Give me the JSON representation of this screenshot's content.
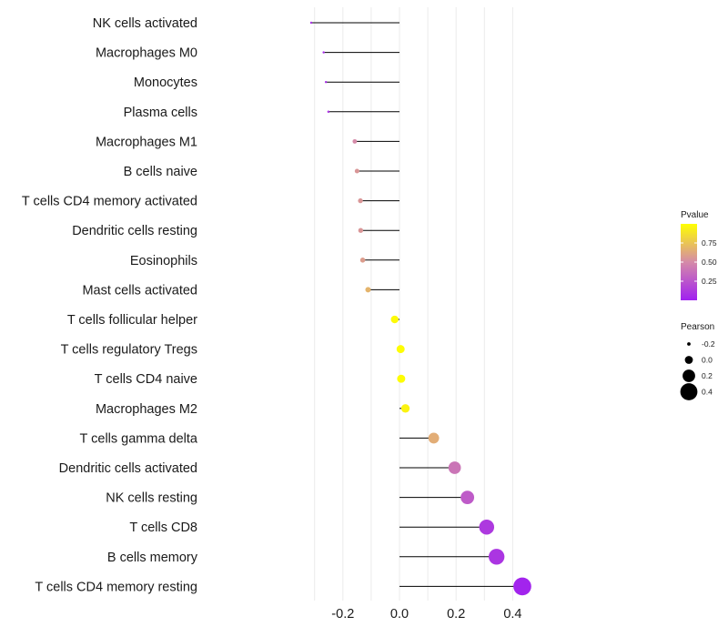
{
  "chart_data": {
    "type": "lollipop",
    "title": "",
    "xlabel": "",
    "ylabel": "",
    "xlim": [
      -0.3,
      0.45
    ],
    "x_ticks": [
      -0.2,
      0.0,
      0.2,
      0.4
    ],
    "x_tick_labels": [
      "-0.2",
      "0.0",
      "0.2",
      "0.4"
    ],
    "grid": true,
    "categories": [
      "NK cells activated",
      "Macrophages M0",
      "Monocytes",
      "Plasma cells",
      "Macrophages M1",
      "B cells naive",
      "T cells CD4 memory activated",
      "Dendritic cells resting",
      "Eosinophils",
      "Mast cells activated",
      "T cells follicular helper",
      "T cells regulatory  Tregs ",
      "T cells CD4 naive",
      "Macrophages M2",
      "T cells gamma delta",
      "Dendritic cells activated",
      "NK cells resting",
      "T cells CD8",
      "B cells memory",
      "T cells CD4 memory resting"
    ],
    "pearson": [
      -0.312,
      -0.268,
      -0.26,
      -0.251,
      -0.158,
      -0.15,
      -0.138,
      -0.137,
      -0.13,
      -0.111,
      -0.017,
      0.004,
      0.006,
      0.021,
      0.121,
      0.195,
      0.24,
      0.308,
      0.343,
      0.434
    ],
    "pvalue": [
      0.08,
      0.06,
      0.07,
      0.1,
      0.5,
      0.55,
      0.55,
      0.55,
      0.58,
      0.68,
      0.98,
      0.99,
      0.99,
      0.95,
      0.65,
      0.4,
      0.28,
      0.12,
      0.1,
      0.02
    ],
    "color_legend": {
      "title": "Pvalue",
      "ticks": [
        0.25,
        0.5,
        0.75
      ],
      "tick_labels": [
        "0.25",
        "0.50",
        "0.75"
      ],
      "range": [
        0.0,
        1.0
      ],
      "low_color": "#a020f0",
      "mid_color": "#d58aa8",
      "high_color": "#ffff00"
    },
    "size_legend": {
      "title": "Pearson",
      "values": [
        -0.2,
        0.0,
        0.2,
        0.4
      ],
      "labels": [
        "-0.2",
        "0.0",
        "0.2",
        "0.4"
      ]
    },
    "legend_position": "right"
  }
}
